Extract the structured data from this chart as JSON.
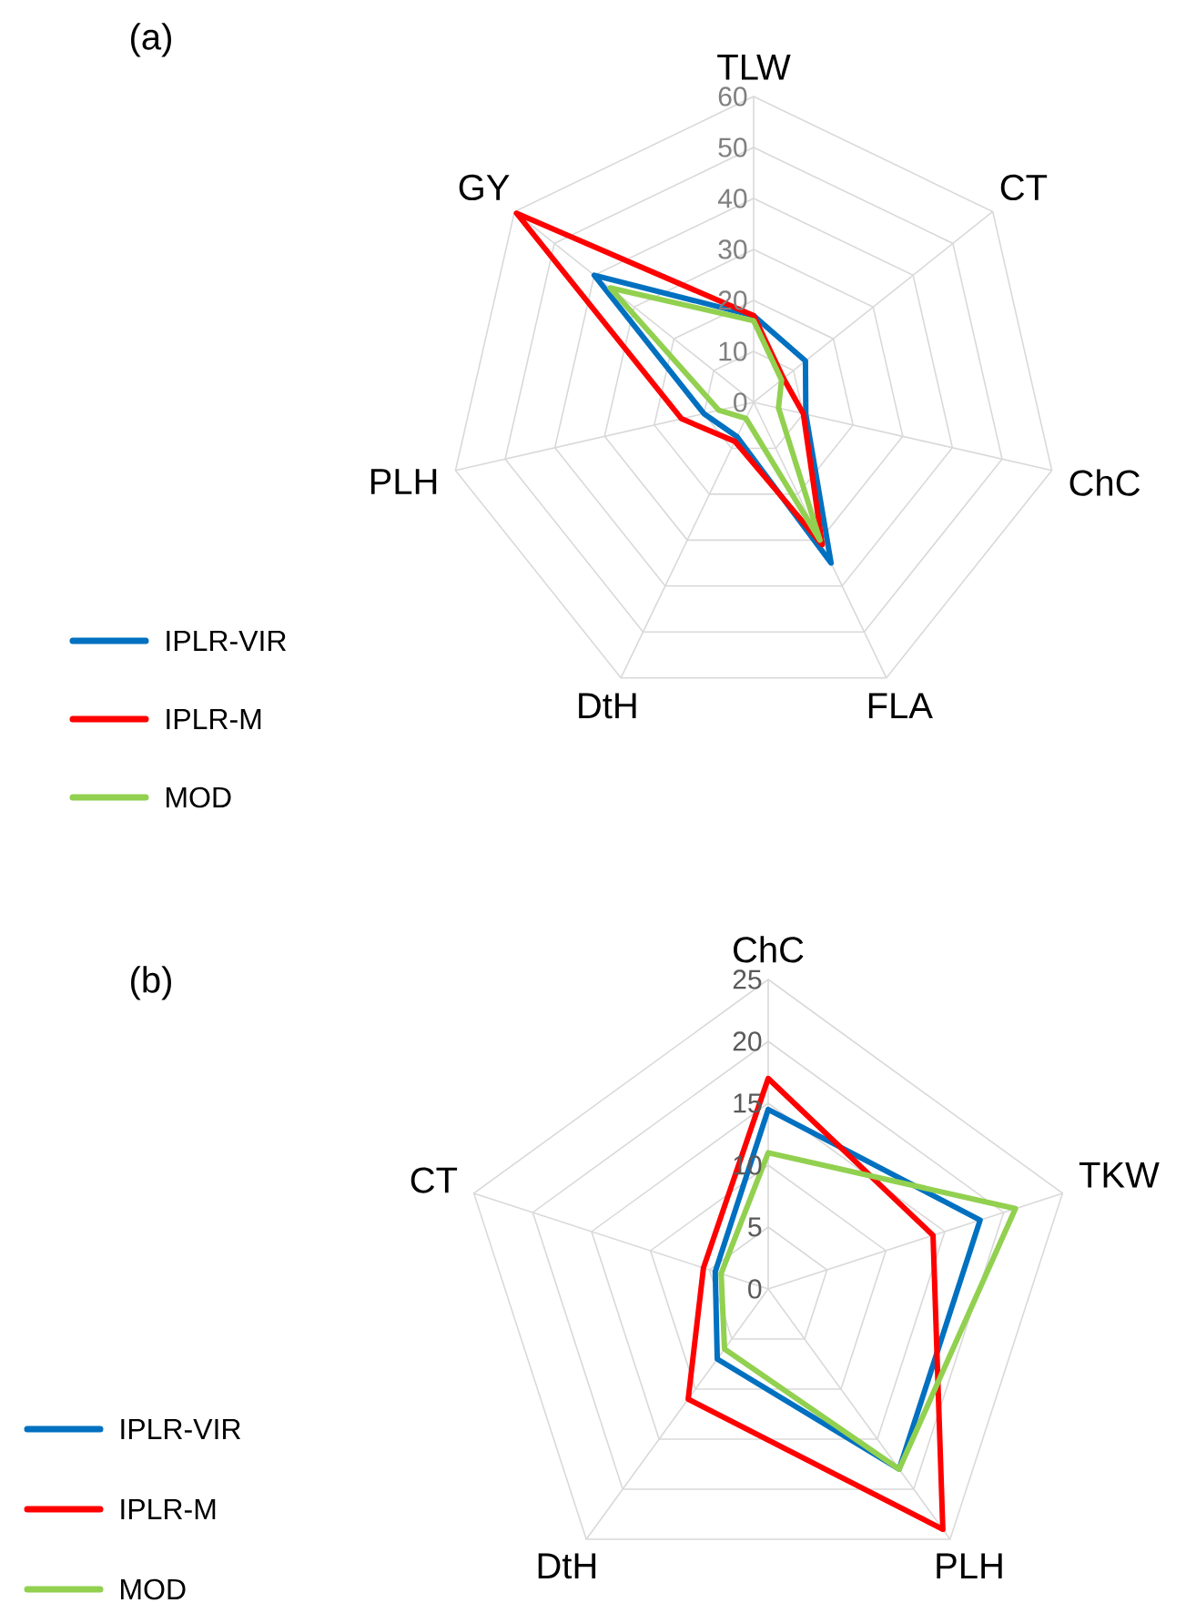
{
  "chart_data": [
    {
      "type": "radar",
      "title": "(a)",
      "categories": [
        "TLW",
        "CT",
        "ChC",
        "FLA",
        "DtH",
        "PLH",
        "GY"
      ],
      "ylim": [
        0,
        60
      ],
      "yticks": [
        0,
        10,
        20,
        30,
        40,
        50,
        60
      ],
      "grid": true,
      "legend": "bottom left",
      "series": [
        {
          "name": "IPLR-VIR",
          "color": "#0070c0",
          "values": [
            17,
            13,
            10.5,
            35,
            7.5,
            10,
            40
          ]
        },
        {
          "name": "IPLR-M",
          "color": "#ff0000",
          "values": [
            17,
            7.5,
            10,
            31,
            8.5,
            14.5,
            59.5
          ]
        },
        {
          "name": "MOD",
          "color": "#92d050",
          "values": [
            16,
            7,
            5,
            30,
            3.5,
            7,
            36
          ]
        }
      ]
    },
    {
      "type": "radar",
      "title": "(b)",
      "categories": [
        "ChC",
        "TKW",
        "PLH",
        "DtH",
        "CT"
      ],
      "ylim": [
        0,
        25
      ],
      "yticks": [
        0,
        5,
        10,
        15,
        20,
        25
      ],
      "grid": true,
      "legend": "bottom left",
      "series": [
        {
          "name": "IPLR-VIR",
          "color": "#0070c0",
          "values": [
            14.5,
            18,
            18,
            7,
            4.5
          ]
        },
        {
          "name": "IPLR-M",
          "color": "#ff0000",
          "values": [
            17,
            14,
            24,
            11,
            5.5
          ]
        },
        {
          "name": "MOD",
          "color": "#92d050",
          "values": [
            11,
            21,
            18,
            6,
            4
          ]
        }
      ]
    }
  ]
}
